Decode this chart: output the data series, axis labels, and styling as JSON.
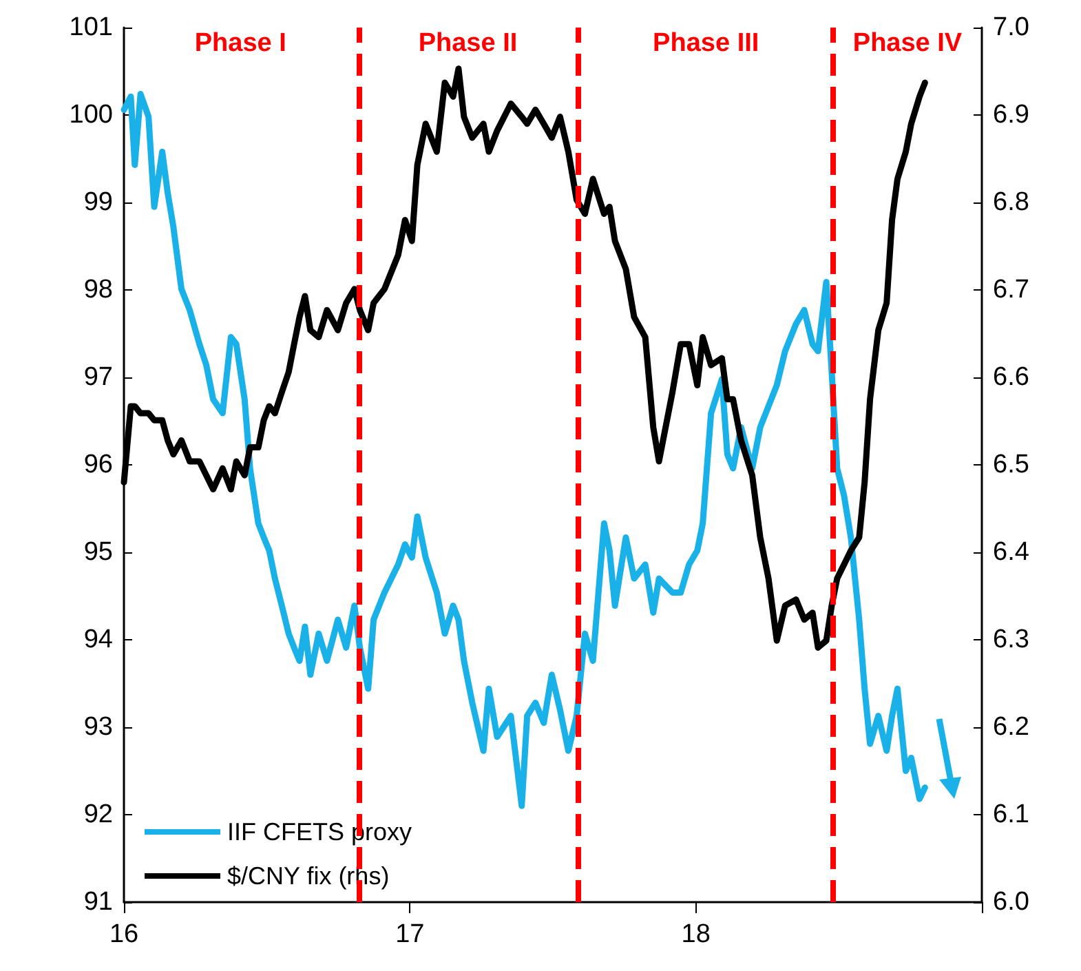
{
  "chart_data": {
    "type": "line",
    "x": [
      16.0,
      16.024,
      16.038,
      16.058,
      16.086,
      16.106,
      16.134,
      16.153,
      16.173,
      16.201,
      16.23,
      16.264,
      16.288,
      16.312,
      16.345,
      16.374,
      16.393,
      16.422,
      16.441,
      16.47,
      16.489,
      16.508,
      16.528,
      16.552,
      16.576,
      16.595,
      16.614,
      16.633,
      16.652,
      16.681,
      16.71,
      16.748,
      16.777,
      16.806,
      16.825,
      16.854,
      16.873,
      16.911,
      16.959,
      16.983,
      17.007,
      17.026,
      17.055,
      17.094,
      17.122,
      17.151,
      17.17,
      17.189,
      17.218,
      17.257,
      17.276,
      17.305,
      17.353,
      17.391,
      17.41,
      17.439,
      17.468,
      17.496,
      17.525,
      17.554,
      17.583,
      17.612,
      17.64,
      17.679,
      17.698,
      17.717,
      17.755,
      17.784,
      17.823,
      17.851,
      17.871,
      17.918,
      17.947,
      17.976,
      18.005,
      18.024,
      18.053,
      18.091,
      18.11,
      18.13,
      18.158,
      18.197,
      18.225,
      18.254,
      18.283,
      18.312,
      18.35,
      18.379,
      18.408,
      18.427,
      18.456,
      18.475,
      18.494,
      18.518,
      18.542,
      18.571,
      18.59,
      18.609,
      18.638,
      18.667,
      18.686,
      18.705,
      18.734,
      18.753,
      18.782,
      18.801
    ],
    "series": [
      {
        "name": "IIF CFETS proxy",
        "color": "#1ab0e8",
        "values": [
          100.06,
          100.21,
          99.43,
          100.24,
          99.98,
          98.95,
          99.58,
          99.11,
          98.72,
          98.01,
          97.77,
          97.38,
          97.14,
          96.75,
          96.59,
          97.46,
          97.38,
          96.75,
          95.96,
          95.33,
          95.17,
          95.02,
          94.7,
          94.39,
          94.07,
          93.91,
          93.76,
          94.15,
          93.6,
          94.07,
          93.76,
          94.23,
          93.91,
          94.39,
          93.91,
          93.44,
          94.23,
          94.54,
          94.86,
          95.09,
          94.94,
          95.41,
          94.94,
          94.54,
          94.07,
          94.39,
          94.23,
          93.76,
          93.28,
          92.73,
          93.44,
          92.89,
          93.13,
          92.1,
          93.13,
          93.28,
          93.05,
          93.6,
          93.2,
          92.73,
          93.13,
          94.07,
          93.76,
          95.33,
          95.02,
          94.39,
          95.17,
          94.7,
          94.86,
          94.31,
          94.7,
          94.54,
          94.54,
          94.86,
          95.02,
          95.33,
          96.59,
          96.98,
          96.12,
          95.96,
          96.43,
          95.96,
          96.43,
          96.67,
          96.91,
          97.3,
          97.61,
          97.77,
          97.38,
          97.3,
          98.09,
          97.06,
          95.96,
          95.65,
          95.17,
          94.23,
          93.44,
          92.81,
          93.13,
          92.73,
          93.13,
          93.44,
          92.5,
          92.65,
          92.18,
          92.31
        ]
      },
      {
        "name": "$/CNY fix (rhs)",
        "color": "#000000",
        "axis": "y2",
        "values": [
          6.48,
          6.567,
          6.567,
          6.559,
          6.559,
          6.551,
          6.551,
          6.528,
          6.512,
          6.528,
          6.504,
          6.504,
          6.488,
          6.472,
          6.496,
          6.472,
          6.504,
          6.488,
          6.52,
          6.52,
          6.551,
          6.567,
          6.559,
          6.583,
          6.606,
          6.638,
          6.669,
          6.693,
          6.654,
          6.646,
          6.677,
          6.654,
          6.685,
          6.701,
          6.677,
          6.654,
          6.685,
          6.701,
          6.74,
          6.78,
          6.756,
          6.843,
          6.89,
          6.858,
          6.937,
          6.921,
          6.953,
          6.898,
          6.874,
          6.89,
          6.858,
          6.882,
          6.913,
          6.898,
          6.89,
          6.906,
          6.89,
          6.874,
          6.898,
          6.858,
          6.803,
          6.787,
          6.827,
          6.787,
          6.795,
          6.756,
          6.724,
          6.669,
          6.646,
          6.543,
          6.504,
          6.583,
          6.638,
          6.638,
          6.591,
          6.646,
          6.614,
          6.622,
          6.575,
          6.575,
          6.528,
          6.488,
          6.417,
          6.37,
          6.299,
          6.339,
          6.346,
          6.323,
          6.331,
          6.291,
          6.299,
          6.339,
          6.37,
          6.386,
          6.402,
          6.417,
          6.48,
          6.575,
          6.654,
          6.685,
          6.78,
          6.827,
          6.858,
          6.89,
          6.921,
          6.937
        ]
      }
    ],
    "xlim": [
      16,
      19
    ],
    "xticks": [
      16,
      17,
      18,
      {
        "value": 19,
        "label": null
      }
    ],
    "ylim": [
      91,
      101
    ],
    "yticks": [
      91,
      92,
      93,
      94,
      95,
      96,
      97,
      98,
      99,
      100,
      101
    ],
    "y2lim": [
      6.0,
      7.0
    ],
    "y2ticks": [
      {
        "value": 6,
        "label": "6.0"
      },
      6.1,
      6.2,
      6.3,
      6.4,
      6.5,
      6.6,
      6.7,
      6.8,
      6.9,
      {
        "value": 7,
        "label": "7.0"
      }
    ],
    "ref_lines": [
      {
        "axis": "x",
        "value": 16.815,
        "color": "#ff0000",
        "line_style": "dashed"
      },
      {
        "axis": "x",
        "value": 17.59,
        "color": "#ff0000",
        "line_style": "dashed"
      },
      {
        "axis": "x",
        "value": 18.48,
        "color": "#ff0000",
        "line_style": "dashed"
      }
    ],
    "annotations": [
      "Phase I",
      "Phase II",
      "Phase III",
      "Phase IV"
    ],
    "grid": false,
    "legend": "bottom left",
    "marker": "none",
    "line_style": "solid"
  }
}
